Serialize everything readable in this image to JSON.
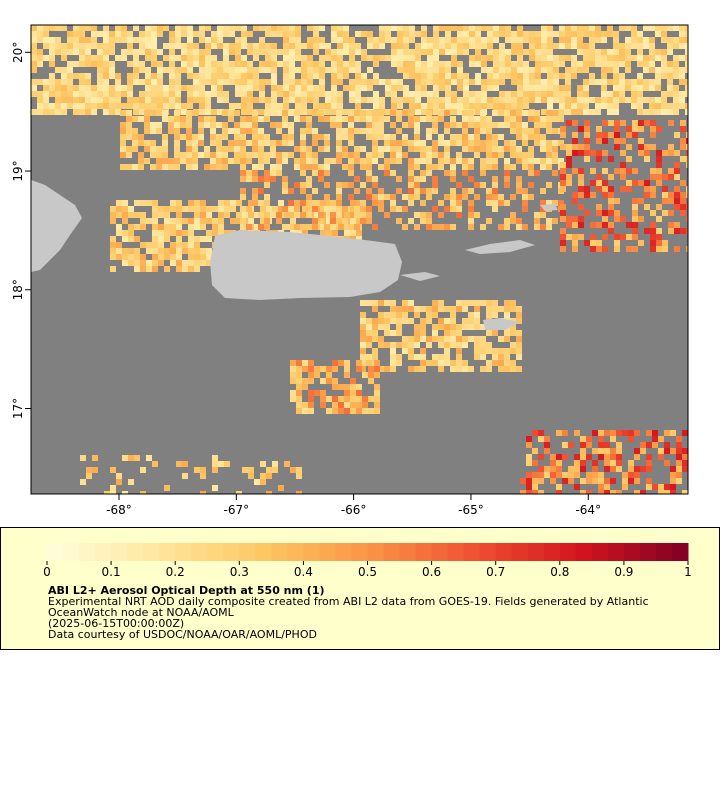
{
  "map": {
    "xlim": [
      -68.75,
      -63.15
    ],
    "ylim": [
      16.28,
      20.23
    ],
    "xticks": [
      {
        "value": -68,
        "label": "-68°"
      },
      {
        "value": -67,
        "label": "-67°"
      },
      {
        "value": -66,
        "label": "-66°"
      },
      {
        "value": -65,
        "label": "-65°"
      },
      {
        "value": -64,
        "label": "-64°"
      }
    ],
    "yticks": [
      {
        "value": 17,
        "label": "17°"
      },
      {
        "value": 18,
        "label": "18°"
      },
      {
        "value": 19,
        "label": "19°"
      },
      {
        "value": 20,
        "label": "20°"
      }
    ]
  },
  "colorbar": {
    "range": [
      0,
      1
    ],
    "ticks": [
      0,
      0.1,
      0.2,
      0.3,
      0.4,
      0.5,
      0.6,
      0.7,
      0.8,
      0.9,
      1
    ]
  },
  "caption": {
    "title": "ABI L2+ Aerosol Optical Depth at 550 nm (1)",
    "lines": [
      "Experimental NRT AOD daily composite created from ABI L2 data from GOES-19. Fields generated by Atlantic",
      "OceanWatch node at NOAA/AOML",
      "(2025-06-15T00:00:00Z)",
      "Data courtesy of USDOC/NOAA/OAR/AOML/PHOD"
    ]
  }
}
